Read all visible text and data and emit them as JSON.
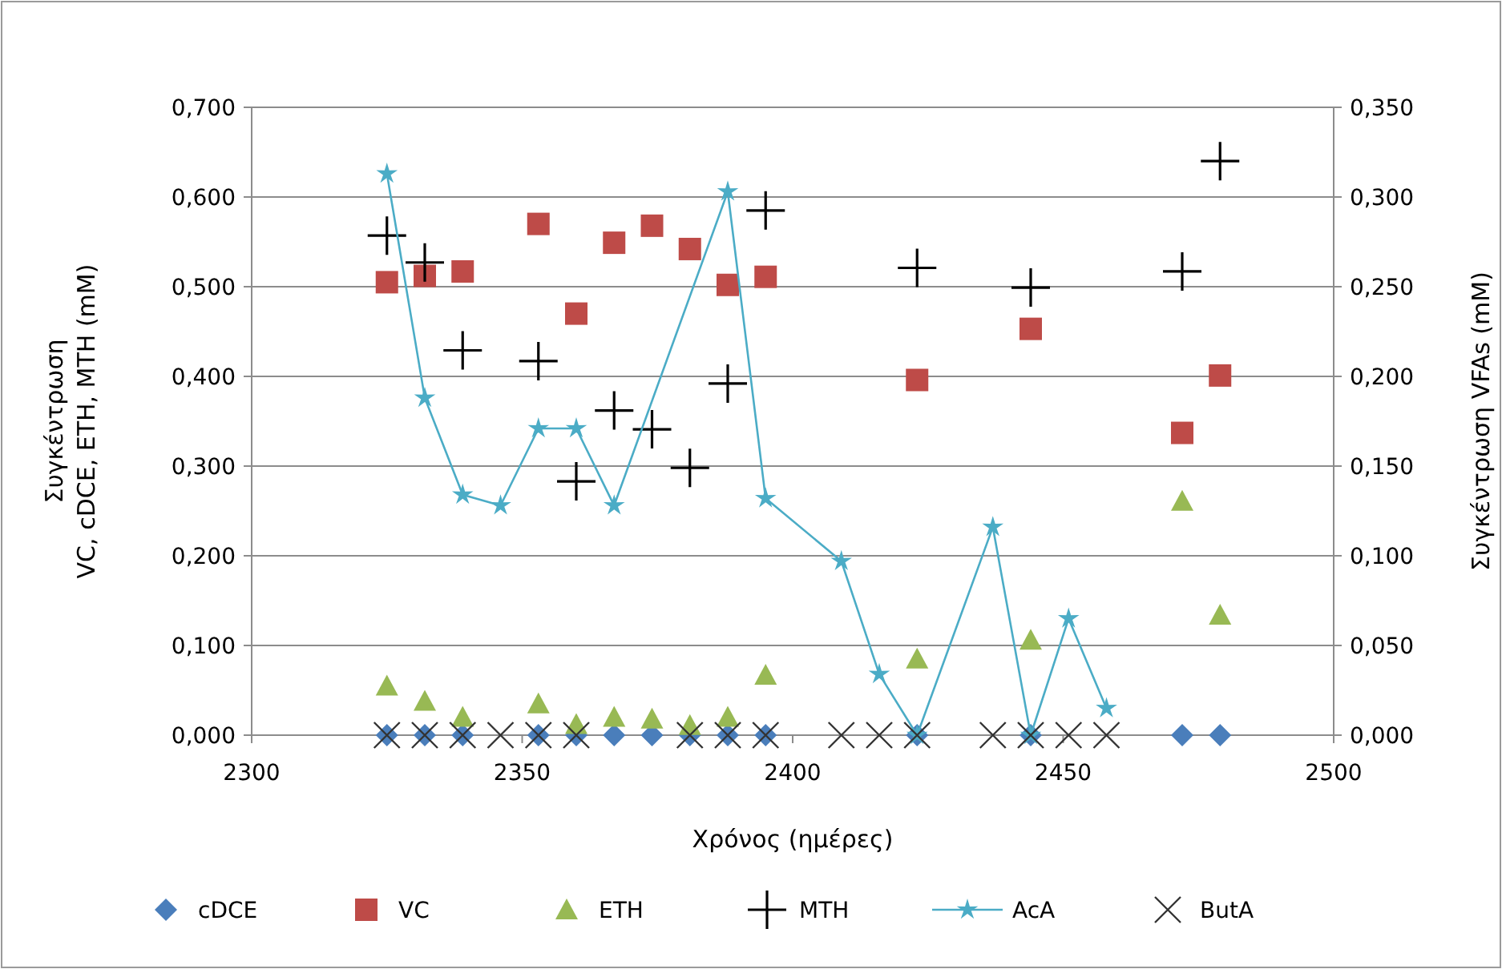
{
  "chart_data": {
    "type": "scatter",
    "xlabel": "Χρόνος (ημέρες)",
    "ylabel": "Συγκέντρωση\nVC, cDCE, ETH, MTH  (mM)",
    "y2label": "Συγκέντρωση VFAs (mM)",
    "xlim": [
      2300,
      2500
    ],
    "xticks": [
      2300,
      2350,
      2400,
      2450,
      2500
    ],
    "ylim": [
      0,
      0.7
    ],
    "yticks": [
      {
        "value": 0,
        "label": "0,000"
      },
      {
        "value": 0.1,
        "label": "0,100"
      },
      {
        "value": 0.2,
        "label": "0,200"
      },
      {
        "value": 0.3,
        "label": "0,300"
      },
      {
        "value": 0.4,
        "label": "0,400"
      },
      {
        "value": 0.5,
        "label": "0,500"
      },
      {
        "value": 0.6,
        "label": "0,600"
      },
      {
        "value": 0.7,
        "label": "0,700"
      }
    ],
    "y2lim": [
      0,
      0.35
    ],
    "y2ticks": [
      {
        "value": 0,
        "label": "0,000"
      },
      {
        "value": 0.05,
        "label": "0,050"
      },
      {
        "value": 0.1,
        "label": "0,100"
      },
      {
        "value": 0.15,
        "label": "0,150"
      },
      {
        "value": 0.2,
        "label": "0,200"
      },
      {
        "value": 0.25,
        "label": "0,250"
      },
      {
        "value": 0.3,
        "label": "0,300"
      },
      {
        "value": 0.35,
        "label": "0,350"
      }
    ],
    "grid": "y",
    "legend": "bottom",
    "series": [
      {
        "name": "cDCE",
        "marker": "diamond",
        "color": "#4a7ebb",
        "x": [
          2325,
          2332,
          2339,
          2353,
          2360,
          2367,
          2374,
          2381,
          2388,
          2395,
          2423,
          2444,
          2472,
          2479
        ],
        "values": [
          0,
          0,
          0,
          0,
          0,
          0,
          0,
          0,
          0,
          0,
          0,
          0,
          0,
          0
        ]
      },
      {
        "name": "VC",
        "marker": "square",
        "color": "#be4b48",
        "x": [
          2325,
          2332,
          2339,
          2353,
          2360,
          2367,
          2374,
          2381,
          2388,
          2395,
          2423,
          2444,
          2472,
          2479
        ],
        "values": [
          0.505,
          0.512,
          0.517,
          0.57,
          0.47,
          0.549,
          0.568,
          0.542,
          0.502,
          0.511,
          0.396,
          0.453,
          0.337,
          0.401
        ]
      },
      {
        "name": "ETH",
        "marker": "triangle",
        "color": "#98b954",
        "x": [
          2325,
          2332,
          2339,
          2353,
          2360,
          2367,
          2374,
          2381,
          2388,
          2395,
          2423,
          2444,
          2472,
          2479
        ],
        "values": [
          0.055,
          0.038,
          0.02,
          0.035,
          0.012,
          0.02,
          0.018,
          0.011,
          0.02,
          0.067,
          0.085,
          0.106,
          0.261,
          0.134
        ]
      },
      {
        "name": "MTH",
        "marker": "cross",
        "color": "#000000",
        "x": [
          2325,
          2332,
          2339,
          2353,
          2360,
          2367,
          2374,
          2381,
          2388,
          2395,
          2423,
          2444,
          2472,
          2479
        ],
        "values": [
          0.557,
          0.527,
          0.429,
          0.417,
          0.283,
          0.362,
          0.341,
          0.298,
          0.392,
          0.585,
          0.521,
          0.499,
          0.517,
          0.64
        ]
      },
      {
        "name": "AcA",
        "type": "line",
        "marker": "star",
        "axis": "y2",
        "color": "#4bacc6",
        "x": [
          2325,
          2332,
          2339,
          2346,
          2353,
          2360,
          2367,
          2388,
          2395,
          2409,
          2416,
          2423,
          2437,
          2444,
          2451,
          2458
        ],
        "values": [
          0.313,
          0.188,
          0.134,
          0.128,
          0.171,
          0.171,
          0.128,
          0.303,
          0.132,
          0.097,
          0.034,
          0,
          0.116,
          0,
          0.065,
          0.015
        ]
      },
      {
        "name": "ButA",
        "marker": "x",
        "axis": "y2",
        "color": "#333333",
        "x": [
          2325,
          2332,
          2339,
          2346,
          2353,
          2360,
          2381,
          2388,
          2395,
          2409,
          2416,
          2423,
          2437,
          2444,
          2451,
          2458
        ],
        "values": [
          0,
          0,
          0,
          0,
          0,
          0,
          0,
          0,
          0,
          0,
          0,
          0,
          0,
          0,
          0,
          0
        ]
      }
    ]
  }
}
